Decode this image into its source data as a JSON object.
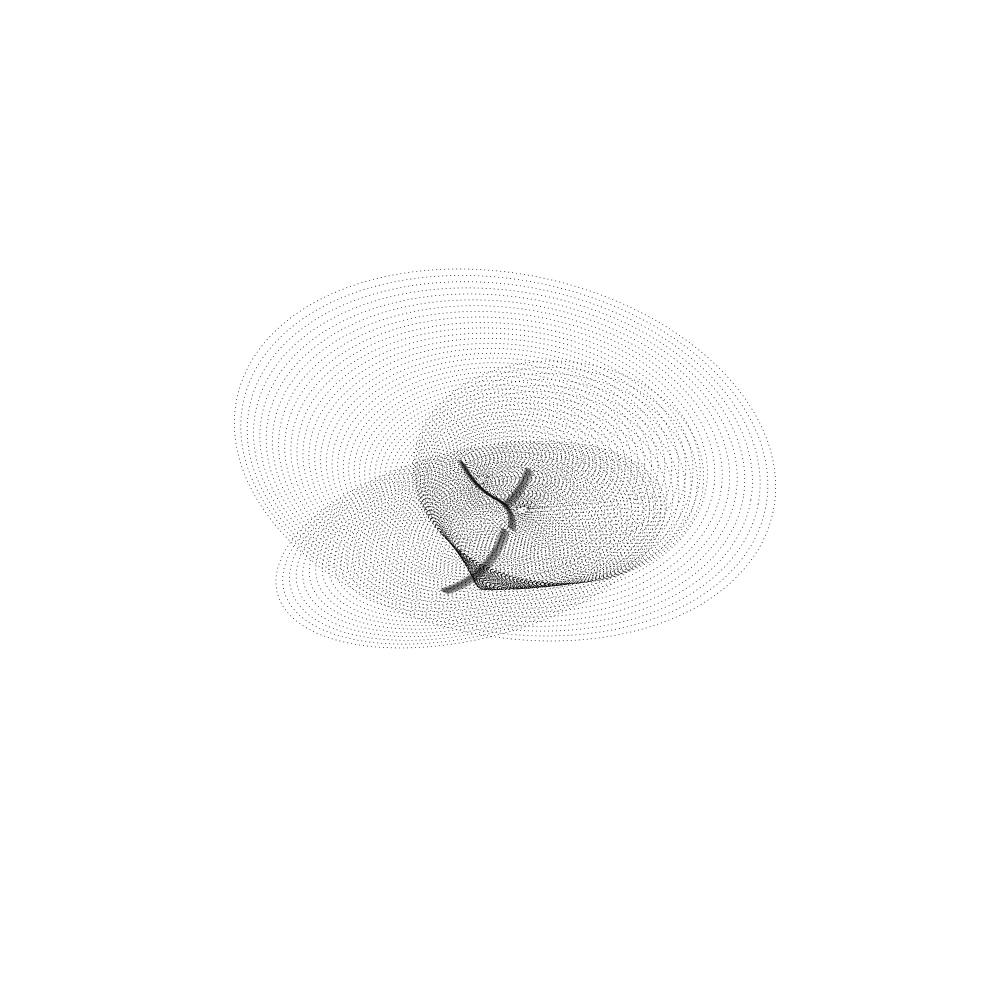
{
  "artwork": {
    "kind": "dotted-ellipse-spiral",
    "background_color": "#ffffff",
    "ink_color": "#000000"
  }
}
